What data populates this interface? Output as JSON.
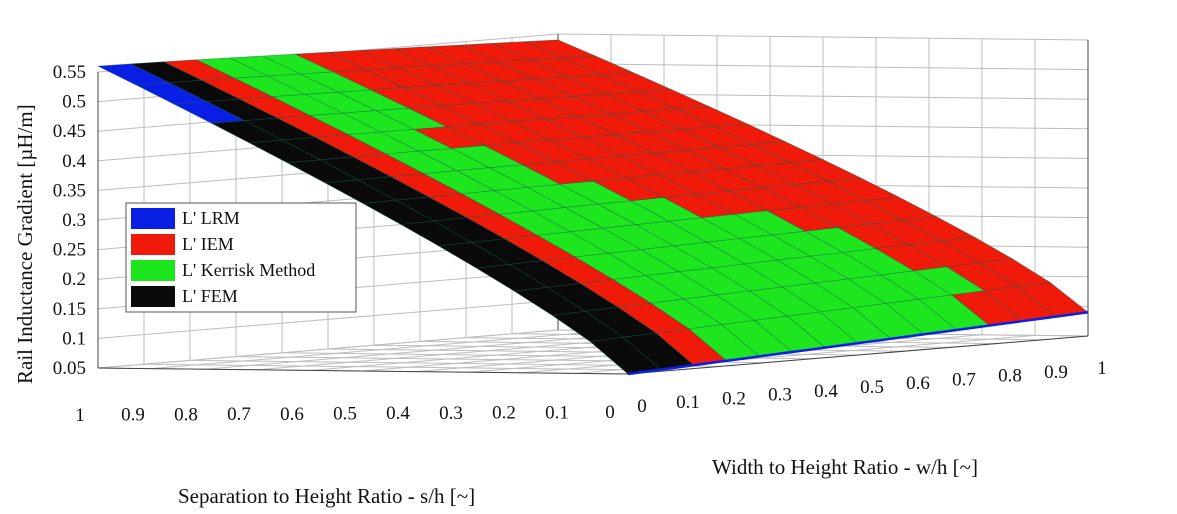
{
  "chart_data": {
    "type": "surface3d",
    "zlabel": "Rail Inductance Gradient  [µH/m]",
    "xlabel": "Width to Height Ratio - w/h [~]",
    "ylabel": "Separation to Height Ratio - s/h [~]",
    "z_ticks": [
      "0.05",
      "0.1",
      "0.15",
      "0.2",
      "0.25",
      "0.3",
      "0.35",
      "0.4",
      "0.45",
      "0.5",
      "0.55"
    ],
    "x_ticks": [
      "0",
      "0.1",
      "0.2",
      "0.3",
      "0.4",
      "0.5",
      "0.6",
      "0.7",
      "0.8",
      "0.9",
      "1"
    ],
    "y_ticks": [
      "0",
      "0.1",
      "0.2",
      "0.3",
      "0.4",
      "0.5",
      "0.6",
      "0.7",
      "0.8",
      "0.9",
      "1"
    ],
    "xlim": [
      0,
      1
    ],
    "ylim": [
      0,
      1
    ],
    "zlim": [
      0.05,
      0.55
    ],
    "grid": true,
    "legend_position": "left",
    "series": [
      {
        "name": "L' LRM",
        "color": "#0a1fe6"
      },
      {
        "name": "L' IEM",
        "color": "#f01a0a"
      },
      {
        "name": "L' Kerrisk Method",
        "color": "#1ee61e"
      },
      {
        "name": "L' FEM",
        "color": "#0a0a0a"
      }
    ],
    "surface_corners": [
      {
        "w_h": 0,
        "s_h": 1,
        "value": 0.56
      },
      {
        "w_h": 1,
        "s_h": 1,
        "value": 0.54
      },
      {
        "w_h": 0,
        "s_h": 0,
        "value": 0.05
      },
      {
        "w_h": 1,
        "s_h": 0,
        "value": 0.09
      }
    ]
  }
}
